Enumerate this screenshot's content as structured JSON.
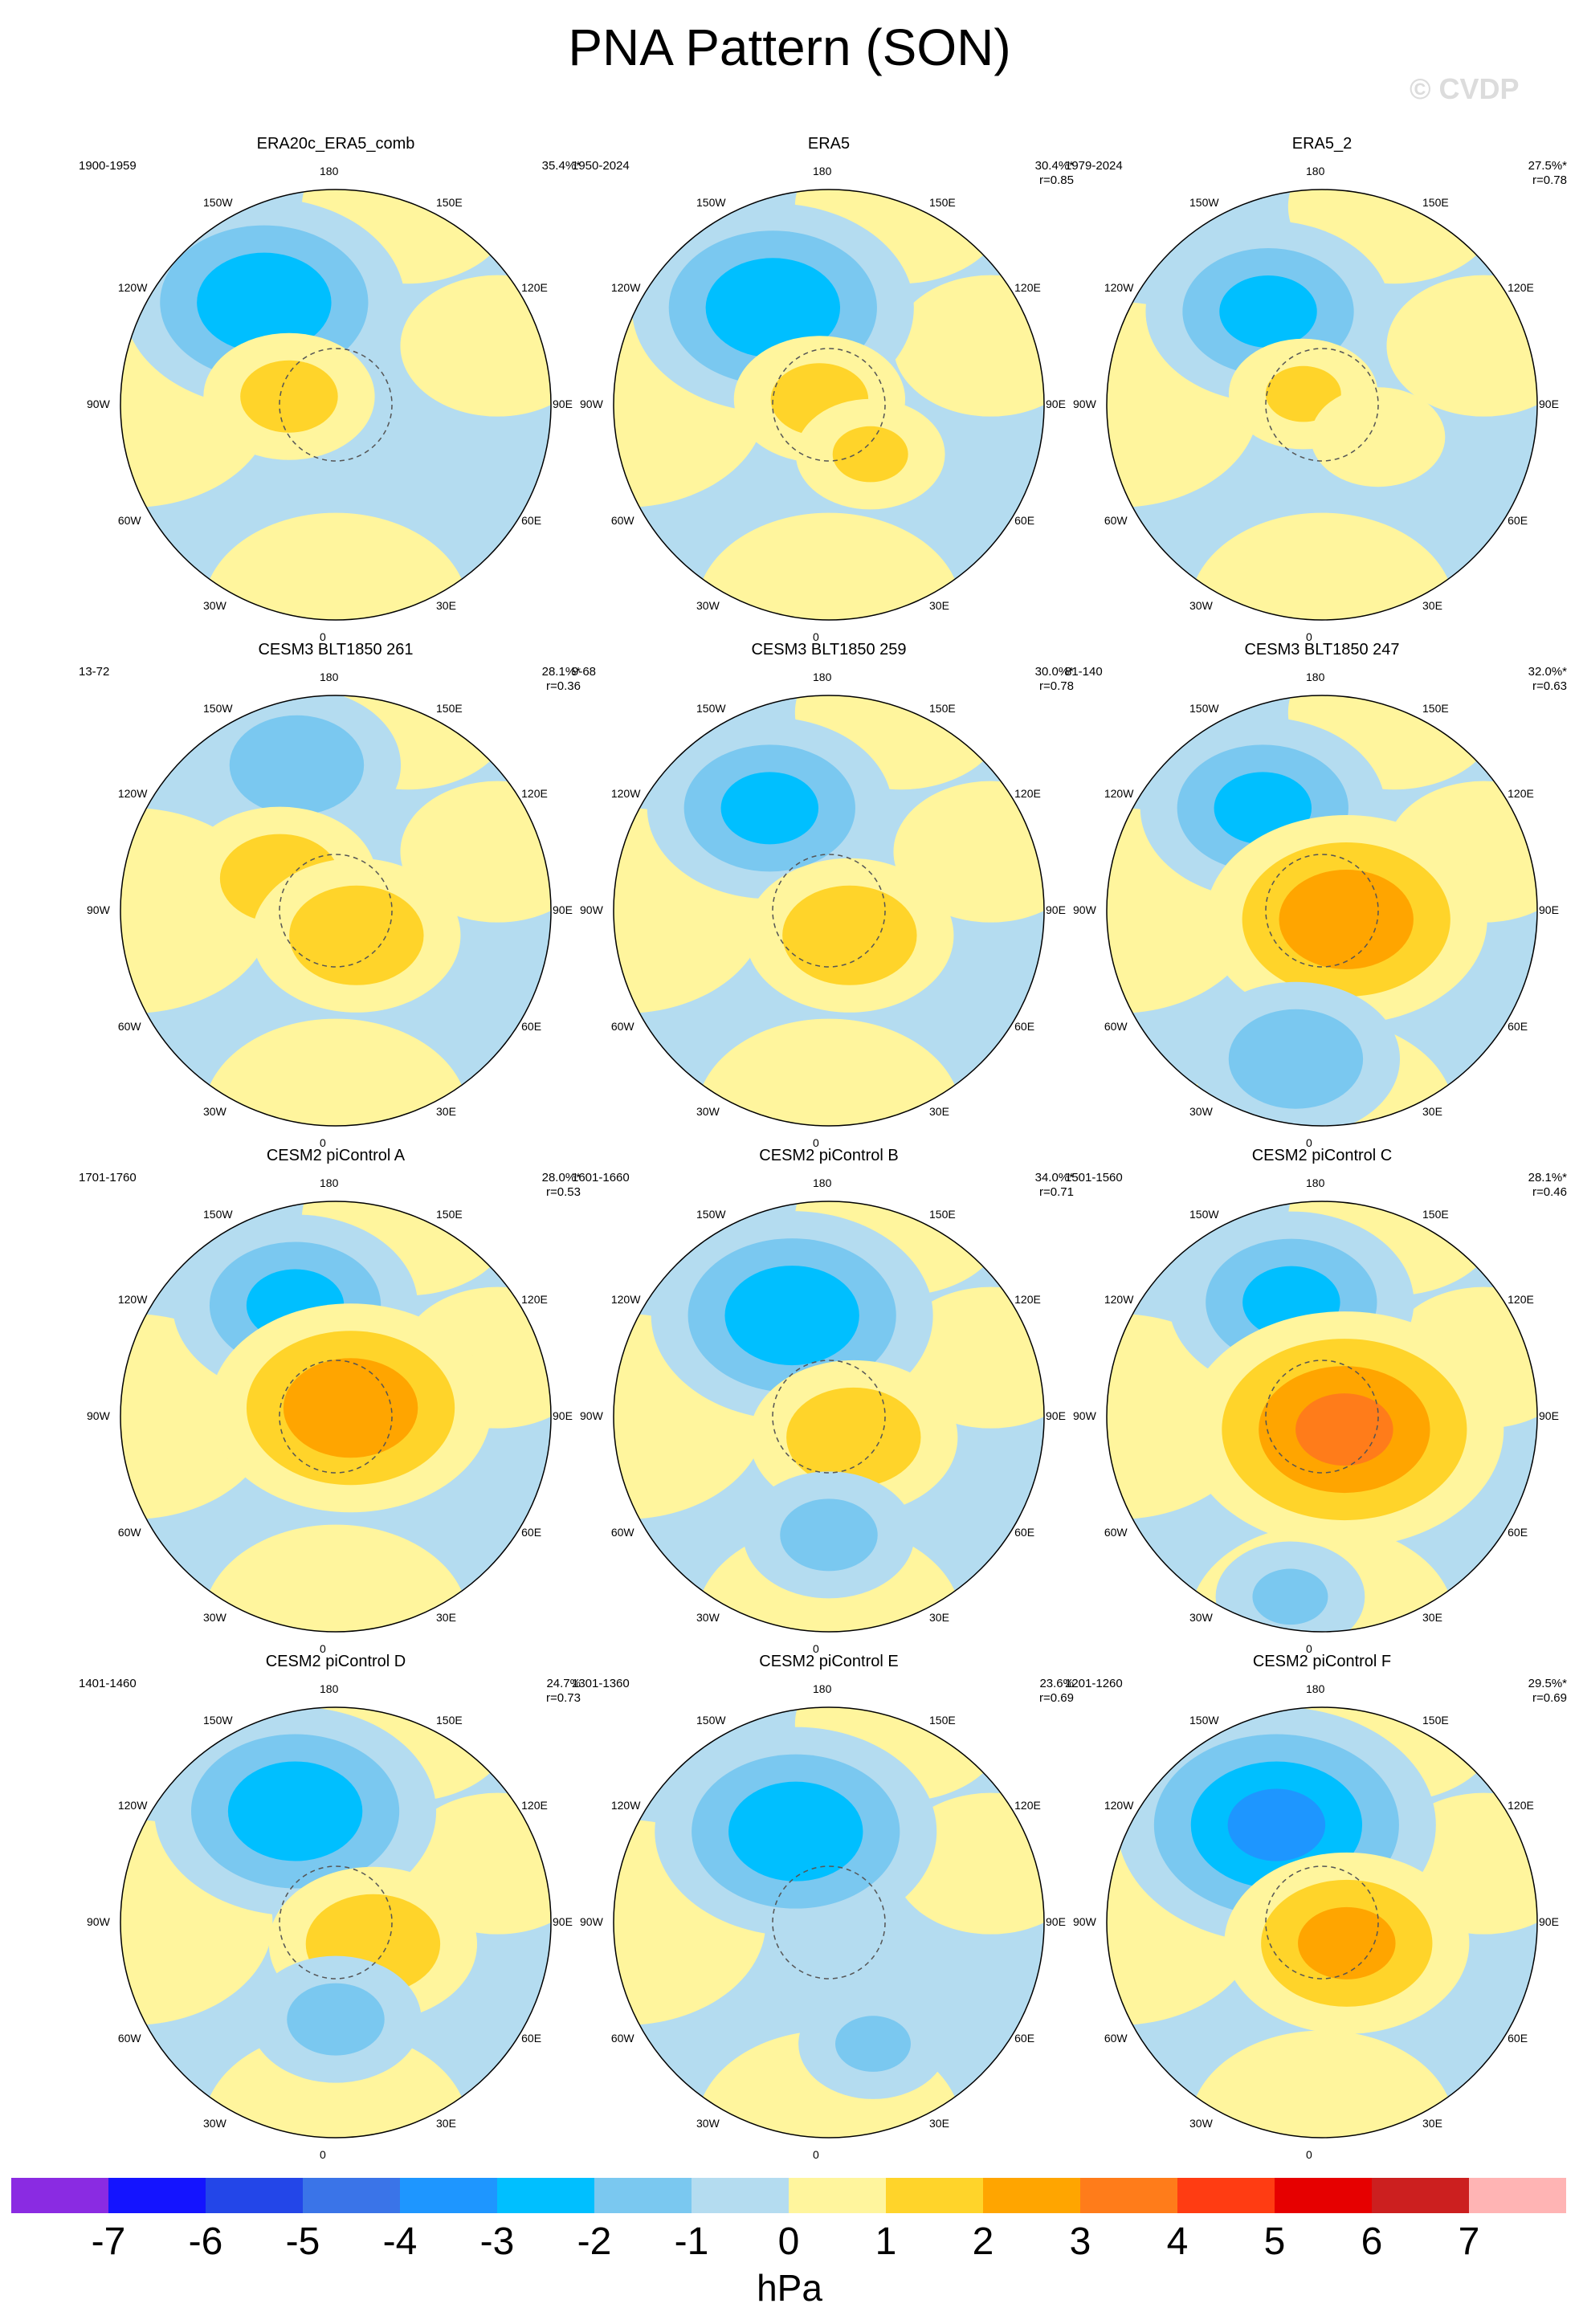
{
  "title": "PNA Pattern (SON)",
  "watermark": "© CVDP",
  "lon_labels": [
    "180",
    "150E",
    "120E",
    "90E",
    "60E",
    "30E",
    "0",
    "30W",
    "60W",
    "90W",
    "120W",
    "150W"
  ],
  "chart_data": {
    "type": "heatmap",
    "title": "PNA Pattern (SON)",
    "projection": "north polar stereographic",
    "units": "hPa",
    "colorbar": {
      "ticks": [
        -7,
        -6,
        -5,
        -4,
        -3,
        -2,
        -1,
        0,
        1,
        2,
        3,
        4,
        5,
        6,
        7
      ],
      "tick_labels": [
        "-7",
        "-6",
        "-5",
        "-4",
        "-3",
        "-2",
        "-1",
        "0",
        "1",
        "2",
        "3",
        "4",
        "5",
        "6",
        "7"
      ],
      "colors": [
        "#8a2be2",
        "#1414ff",
        "#2346e8",
        "#3a74e8",
        "#1e96ff",
        "#00bfff",
        "#7ac8f0",
        "#b4dcf0",
        "#fff59d",
        "#ffd42a",
        "#ffa500",
        "#ff7c1a",
        "#ff3c12",
        "#e60000",
        "#cc1f1f",
        "#ffb4b4"
      ],
      "label": "hPa"
    },
    "panels": [
      {
        "name": "ERA20c_ERA5_comb",
        "years": "1900-1959",
        "variance": "35.4%*",
        "r": "",
        "centers": [
          {
            "lon": -145,
            "colat": 0.58,
            "value": -3
          },
          {
            "lon": -100,
            "colat": 0.22,
            "value": 1.5
          }
        ]
      },
      {
        "name": "ERA5",
        "years": "1950-2024",
        "variance": "30.4%*",
        "r": "r=0.85",
        "centers": [
          {
            "lon": -150,
            "colat": 0.52,
            "value": -3
          },
          {
            "lon": -120,
            "colat": 0.05,
            "value": 1.5
          },
          {
            "lon": 40,
            "colat": 0.3,
            "value": 1.2
          }
        ]
      },
      {
        "name": "ERA5_2",
        "years": "1979-2024",
        "variance": "27.5%*",
        "r": "r=0.78",
        "centers": [
          {
            "lon": -150,
            "colat": 0.5,
            "value": -2.5
          },
          {
            "lon": -120,
            "colat": 0.1,
            "value": 1.2
          },
          {
            "lon": 60,
            "colat": 0.3,
            "value": 1
          }
        ]
      },
      {
        "name": "CESM3 BLT1850 261",
        "years": "13-72",
        "variance": "28.1%*",
        "r": "r=0.36",
        "centers": [
          {
            "lon": -165,
            "colat": 0.7,
            "value": -2
          },
          {
            "lon": -120,
            "colat": 0.3,
            "value": 1.8
          },
          {
            "lon": 40,
            "colat": 0.15,
            "value": 2
          }
        ]
      },
      {
        "name": "CESM3 BLT1850 259",
        "years": "9-68",
        "variance": "30.0%*",
        "r": "r=0.78",
        "centers": [
          {
            "lon": -150,
            "colat": 0.55,
            "value": -2.5
          },
          {
            "lon": 40,
            "colat": 0.15,
            "value": 2
          }
        ]
      },
      {
        "name": "CESM3 BLT1850 247",
        "years": "81-140",
        "variance": "32.0%*",
        "r": "r=0.63",
        "centers": [
          {
            "lon": -150,
            "colat": 0.55,
            "value": -2.5
          },
          {
            "lon": 70,
            "colat": 0.12,
            "value": 3
          },
          {
            "lon": -10,
            "colat": 0.7,
            "value": -2
          }
        ]
      },
      {
        "name": "CESM2 piControl A",
        "years": "1701-1760",
        "variance": "28.0%*",
        "r": "r=0.53",
        "centers": [
          {
            "lon": -160,
            "colat": 0.55,
            "value": -2.5
          },
          {
            "lon": 120,
            "colat": 0.08,
            "value": 3
          }
        ]
      },
      {
        "name": "CESM2 piControl B",
        "years": "1601-1660",
        "variance": "34.0%*",
        "r": "r=0.71",
        "centers": [
          {
            "lon": -160,
            "colat": 0.5,
            "value": -3
          },
          {
            "lon": 50,
            "colat": 0.15,
            "value": 2
          },
          {
            "lon": 0,
            "colat": 0.55,
            "value": -1.5
          }
        ]
      },
      {
        "name": "CESM2 piControl C",
        "years": "1501-1560",
        "variance": "28.1%*",
        "r": "r=0.46",
        "centers": [
          {
            "lon": -165,
            "colat": 0.55,
            "value": -2.5
          },
          {
            "lon": 60,
            "colat": 0.12,
            "value": 3.5
          },
          {
            "lon": -10,
            "colat": 0.85,
            "value": -1.2
          }
        ]
      },
      {
        "name": "CESM2 piControl D",
        "years": "1401-1460",
        "variance": "24.7%",
        "r": "r=0.73",
        "centers": [
          {
            "lon": -160,
            "colat": 0.55,
            "value": -3
          },
          {
            "lon": 60,
            "colat": 0.2,
            "value": 2
          },
          {
            "lon": 0,
            "colat": 0.45,
            "value": -1.5
          }
        ]
      },
      {
        "name": "CESM2 piControl E",
        "years": "1301-1360",
        "variance": "23.6%",
        "r": "r=0.69",
        "centers": [
          {
            "lon": -160,
            "colat": 0.45,
            "value": -3
          },
          {
            "lon": 20,
            "colat": 0.6,
            "value": -1.2
          }
        ]
      },
      {
        "name": "CESM2 piControl F",
        "years": "1201-1260",
        "variance": "29.5%*",
        "r": "r=0.69",
        "centers": [
          {
            "lon": -155,
            "colat": 0.5,
            "value": -3.5
          },
          {
            "lon": 50,
            "colat": 0.15,
            "value": 2.5
          }
        ]
      }
    ]
  }
}
